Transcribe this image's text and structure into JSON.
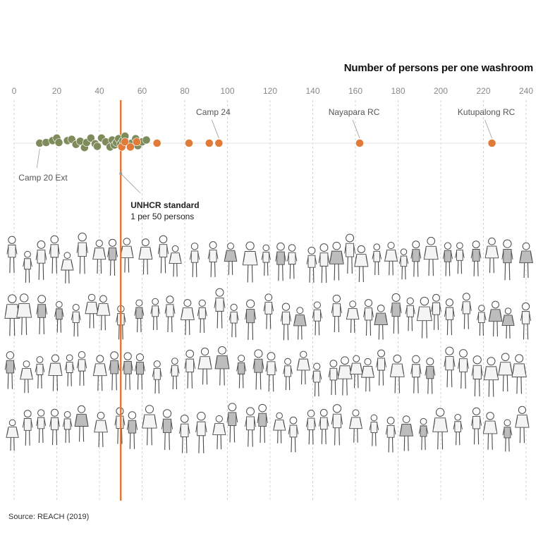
{
  "chart_data": {
    "type": "scatter",
    "title": "Number of persons per one washroom",
    "xlim": [
      0,
      240
    ],
    "x_ticks": [
      "0",
      "20",
      "40",
      "60",
      "80",
      "100",
      "120",
      "140",
      "160",
      "180",
      "200",
      "220",
      "240"
    ],
    "grid": true,
    "series": [
      {
        "color": "#7d8c5a",
        "points": [
          {
            "x": 12,
            "y": 0
          },
          {
            "x": 15,
            "y": 0.05
          },
          {
            "x": 18,
            "y": 0.2
          },
          {
            "x": 20,
            "y": 0.4
          },
          {
            "x": 21,
            "y": 0.05
          },
          {
            "x": 25,
            "y": 0.2
          },
          {
            "x": 27,
            "y": 0.3
          },
          {
            "x": 29,
            "y": -0.1
          },
          {
            "x": 31,
            "y": 0.15
          },
          {
            "x": 33,
            "y": -0.35
          },
          {
            "x": 34,
            "y": 0.05
          },
          {
            "x": 36,
            "y": 0.4
          },
          {
            "x": 38,
            "y": -0.05
          },
          {
            "x": 39,
            "y": -0.25
          },
          {
            "x": 41,
            "y": 0.4
          },
          {
            "x": 43,
            "y": 0.1
          },
          {
            "x": 45,
            "y": -0.3
          },
          {
            "x": 46,
            "y": 0.25
          },
          {
            "x": 47,
            "y": -0.15
          },
          {
            "x": 48,
            "y": 0.05
          },
          {
            "x": 49,
            "y": 0.35
          },
          {
            "x": 50,
            "y": -0.05
          },
          {
            "x": 51,
            "y": 0.2
          },
          {
            "x": 52,
            "y": 0.55
          },
          {
            "x": 55,
            "y": 0
          },
          {
            "x": 57,
            "y": 0.35
          },
          {
            "x": 58,
            "y": -0.2
          },
          {
            "x": 60,
            "y": 0.1
          },
          {
            "x": 62,
            "y": 0.25
          }
        ]
      },
      {
        "color": "#e07b3a",
        "points": [
          {
            "x": 50.5,
            "y": -0.3
          },
          {
            "x": 52,
            "y": 0.1
          },
          {
            "x": 54.5,
            "y": -0.3
          },
          {
            "x": 57.5,
            "y": 0.1
          },
          {
            "x": 67,
            "y": 0
          },
          {
            "x": 82,
            "y": 0
          },
          {
            "x": 91.5,
            "y": 0
          },
          {
            "x": 96,
            "y": 0
          },
          {
            "x": 162,
            "y": 0
          },
          {
            "x": 224,
            "y": 0
          }
        ]
      }
    ],
    "reference_line": {
      "x": 50,
      "color": "#e07b3a",
      "label": "UNHCR standard",
      "sublabel": "1 per 50 persons"
    },
    "annotations": [
      {
        "text": "Camp 20 Ext",
        "x": 12
      },
      {
        "text": "Camp 24",
        "x": 96
      },
      {
        "text": "Nayapara RC",
        "x": 162
      },
      {
        "text": "Kutupalong RC",
        "x": 224
      }
    ],
    "source": "Source: REACH (2019)"
  }
}
